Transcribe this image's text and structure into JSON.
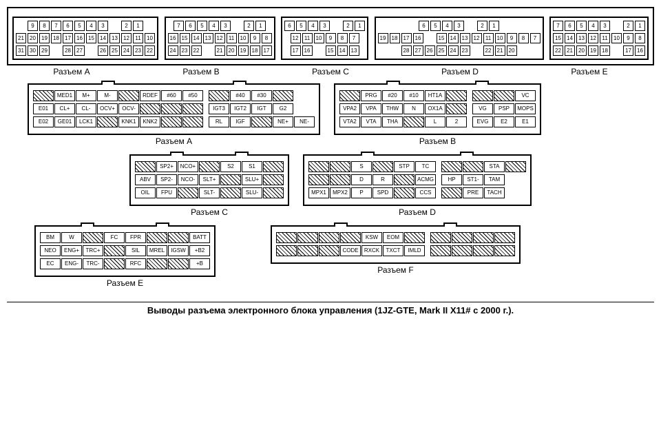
{
  "caption": "Выводы разъема электронного блока управления (1JZ-GTE, Mark II X11# с 2000 г.).",
  "labels": {
    "A": "Разъем A",
    "B": "Разъем B",
    "C": "Разъем C",
    "D": "Разъем D",
    "E": "Разъем E",
    "F": "Разъем F"
  },
  "topConnectors": [
    {
      "name": "A",
      "rows": [
        [
          "9",
          "8",
          "7",
          "6",
          "5",
          "4",
          "3",
          "",
          "2",
          "1"
        ],
        [
          "21",
          "20",
          "19",
          "18",
          "17",
          "16",
          "15",
          "14",
          "13",
          "12",
          "11",
          "10"
        ],
        [
          "31",
          "30",
          "29",
          "",
          "28",
          "27",
          "",
          "26",
          "25",
          "24",
          "23",
          "22"
        ]
      ]
    },
    {
      "name": "B",
      "rows": [
        [
          "7",
          "6",
          "5",
          "4",
          "3",
          "",
          "2",
          "1"
        ],
        [
          "16",
          "15",
          "14",
          "13",
          "12",
          "11",
          "10",
          "9",
          "8"
        ],
        [
          "24",
          "23",
          "22",
          "",
          "21",
          "20",
          "19",
          "18",
          "17"
        ]
      ]
    },
    {
      "name": "C",
      "rows": [
        [
          "6",
          "5",
          "4",
          "3",
          "",
          "2",
          "1"
        ],
        [
          "12",
          "11",
          "10",
          "9",
          "8",
          "7"
        ],
        [
          "17",
          "16",
          "",
          "15",
          "14",
          "13"
        ]
      ]
    },
    {
      "name": "D",
      "rows": [
        [
          "6",
          "5",
          "4",
          "3",
          "",
          "2",
          "1"
        ],
        [
          "19",
          "18",
          "17",
          "16",
          "",
          "15",
          "14",
          "13",
          "12",
          "11",
          "10",
          "9",
          "8",
          "7"
        ],
        [
          "28",
          "27",
          "26",
          "25",
          "24",
          "23",
          "",
          "22",
          "21",
          "20"
        ]
      ]
    },
    {
      "name": "E",
      "rows": [
        [
          "7",
          "6",
          "5",
          "4",
          "3",
          "",
          "2",
          "1"
        ],
        [
          "15",
          "14",
          "13",
          "12",
          "11",
          "10",
          "9",
          "8"
        ],
        [
          "22",
          "21",
          "20",
          "19",
          "18",
          "",
          "17",
          "16"
        ]
      ]
    }
  ],
  "bigA": [
    [
      "/",
      "MED1",
      "M+",
      "M-",
      "/",
      "RDEF",
      "#60",
      "#50",
      "|",
      "/",
      "#40",
      "#30",
      "/"
    ],
    [
      "E01",
      "CL+",
      "CL-",
      "OCV+",
      "OCV-",
      "/",
      "/",
      "/",
      "|",
      "IGT3",
      "IGT2",
      "IGT",
      "G2"
    ],
    [
      "E02",
      "GE01",
      "LCK1",
      "/",
      "KNK1",
      "KNK2",
      "/",
      "/",
      "|",
      "RL",
      "IGF",
      "/",
      "NE+",
      "NE-"
    ]
  ],
  "bigB": [
    [
      "/",
      "PRG",
      "#20",
      "#10",
      "HT1A",
      "/",
      "|",
      "/",
      "/",
      "VC"
    ],
    [
      "VPA2",
      "VPA",
      "THW",
      "N",
      "OX1A",
      "/",
      "|",
      "VG",
      "PSP",
      "MOPS"
    ],
    [
      "VTA2",
      "VTA",
      "THA",
      "/",
      "L",
      "2",
      "|",
      "EVG",
      "E2",
      "E1"
    ]
  ],
  "bigC": [
    [
      "/",
      "SP2+",
      "NCO+",
      "/",
      "S2",
      "S1",
      "/"
    ],
    [
      "ABV",
      "SP2-",
      "NCO-",
      "SLT+",
      "/",
      "SLU+",
      "/"
    ],
    [
      "OIL",
      "FPU",
      "/",
      "SLT-",
      "/",
      "SLU-",
      "/"
    ]
  ],
  "bigD": [
    [
      "/",
      "/",
      "S",
      "/",
      "STP",
      "TC",
      "|",
      "/",
      "/",
      "STA",
      "/"
    ],
    [
      "/",
      "/",
      "D",
      "R",
      "/",
      "ACMG",
      "|",
      "HP",
      "ST1-",
      "TAM"
    ],
    [
      "MPX1",
      "MPX2",
      "P",
      "SPD",
      "/",
      "CCS",
      "|",
      "/",
      "PRE",
      "TACH"
    ]
  ],
  "bigE": [
    [
      "BM",
      "W",
      "/",
      "FC",
      "FPR",
      "/",
      "/",
      "BATT"
    ],
    [
      "NEO",
      "ENG+",
      "TRC+",
      "/",
      "SIL",
      "MREL",
      "IGSW",
      "+B2"
    ],
    [
      "EC",
      "ENG-",
      "TRC-",
      "/",
      "RFC",
      "/",
      "/",
      "+B"
    ]
  ],
  "bigF": [
    [
      "/",
      "/",
      "/",
      "/",
      "KSW",
      "EOM",
      "/",
      "|",
      "/",
      "/",
      "/",
      "/"
    ],
    [
      "/",
      "/",
      "/",
      "CODE",
      "RXCK",
      "TXCT",
      "IMLD",
      "|",
      "/",
      "/",
      "/",
      "/"
    ]
  ]
}
